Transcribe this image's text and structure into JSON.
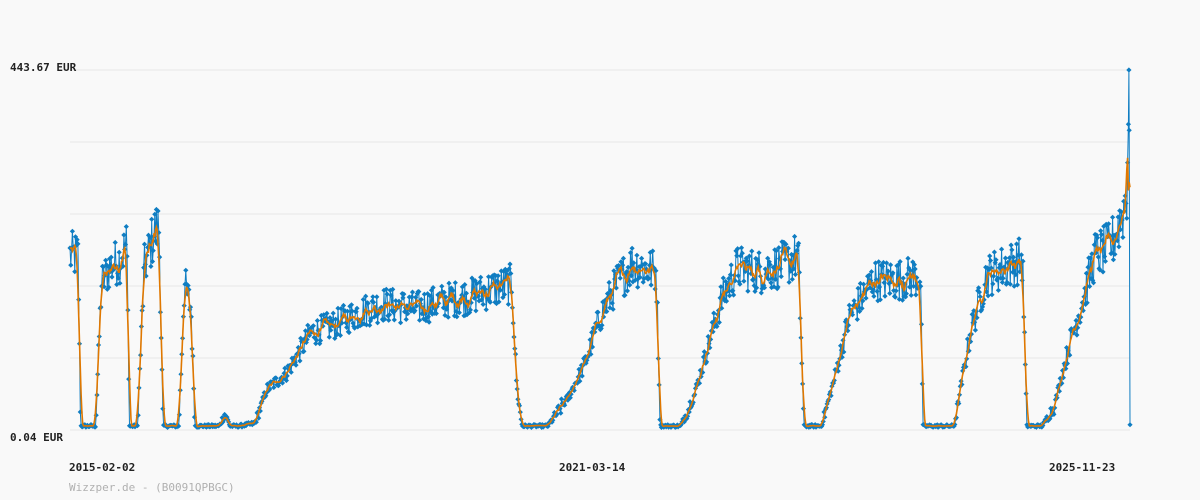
{
  "credit": "Wizzper.de - (B0091QPBGC)",
  "colors": {
    "background": "#f9f9f9",
    "grid": "#e8e8e8",
    "price_markers": "#0f7dc2",
    "average_line": "#e07800"
  },
  "chart_data": {
    "type": "line",
    "title": "",
    "xlabel": "",
    "ylabel": "",
    "y_tick_labels": {
      "top": "443.67 EUR",
      "bottom": "0.04 EUR"
    },
    "x_tick_labels": [
      "2015-02-02",
      "2021-03-14",
      "2025-11-23"
    ],
    "ylim": [
      0.04,
      443.67
    ],
    "xlim": [
      "2015-02-02",
      "2026-01-26"
    ],
    "grid": true,
    "gridline_count": 6,
    "marker_step_days": 3,
    "series": [
      {
        "name": "",
        "role": "price_points",
        "color": "#0f7dc2",
        "marker": "diamond",
        "keypoints": [
          [
            "2015-02-02",
            215
          ],
          [
            "2015-02-20",
            215
          ],
          [
            "2015-03-05",
            215
          ],
          [
            "2015-03-14",
            5
          ],
          [
            "2015-05-10",
            5
          ],
          [
            "2015-06-01",
            180
          ],
          [
            "2015-07-01",
            200
          ],
          [
            "2015-08-10",
            210
          ],
          [
            "2015-09-05",
            230
          ],
          [
            "2015-09-15",
            5
          ],
          [
            "2015-10-15",
            5
          ],
          [
            "2015-11-10",
            200
          ],
          [
            "2015-12-20",
            245
          ],
          [
            "2016-01-05",
            250
          ],
          [
            "2016-01-20",
            5
          ],
          [
            "2016-03-20",
            5
          ],
          [
            "2016-04-10",
            180
          ],
          [
            "2016-05-05",
            150
          ],
          [
            "2016-05-20",
            5
          ],
          [
            "2016-08-20",
            5
          ],
          [
            "2016-09-10",
            20
          ],
          [
            "2016-09-30",
            5
          ],
          [
            "2016-11-01",
            5
          ],
          [
            "2017-01-01",
            8
          ],
          [
            "2017-02-15",
            50
          ],
          [
            "2017-05-01",
            70
          ],
          [
            "2017-08-01",
            120
          ],
          [
            "2017-11-01",
            130
          ],
          [
            "2018-02-01",
            145
          ],
          [
            "2018-05-01",
            155
          ],
          [
            "2018-09-01",
            150
          ],
          [
            "2019-01-01",
            160
          ],
          [
            "2019-04-01",
            165
          ],
          [
            "2019-07-01",
            175
          ],
          [
            "2019-09-01",
            180
          ],
          [
            "2019-09-20",
            50
          ],
          [
            "2019-10-10",
            5
          ],
          [
            "2020-01-15",
            5
          ],
          [
            "2020-04-01",
            40
          ],
          [
            "2020-06-01",
            80
          ],
          [
            "2020-08-01",
            140
          ],
          [
            "2020-10-01",
            180
          ],
          [
            "2020-12-01",
            205
          ],
          [
            "2021-03-01",
            195
          ],
          [
            "2021-03-15",
            5
          ],
          [
            "2021-06-01",
            5
          ],
          [
            "2021-07-20",
            40
          ],
          [
            "2021-09-01",
            90
          ],
          [
            "2021-11-01",
            160
          ],
          [
            "2022-01-01",
            200
          ],
          [
            "2022-04-01",
            195
          ],
          [
            "2022-07-01",
            205
          ],
          [
            "2022-08-20",
            215
          ],
          [
            "2022-09-10",
            5
          ],
          [
            "2022-11-15",
            5
          ],
          [
            "2023-01-01",
            60
          ],
          [
            "2023-03-01",
            140
          ],
          [
            "2023-06-01",
            185
          ],
          [
            "2023-09-01",
            185
          ],
          [
            "2023-11-25",
            190
          ],
          [
            "2023-12-05",
            5
          ],
          [
            "2024-04-01",
            5
          ],
          [
            "2024-06-01",
            120
          ],
          [
            "2024-08-01",
            190
          ],
          [
            "2024-10-01",
            200
          ],
          [
            "2024-12-15",
            210
          ],
          [
            "2025-01-01",
            5
          ],
          [
            "2025-03-01",
            5
          ],
          [
            "2025-04-15",
            30
          ],
          [
            "2025-06-15",
            110
          ],
          [
            "2025-08-01",
            160
          ],
          [
            "2025-09-15",
            215
          ],
          [
            "2025-11-10",
            225
          ],
          [
            "2025-12-01",
            240
          ],
          [
            "2026-01-01",
            270
          ],
          [
            "2026-01-15",
            295
          ],
          [
            "2026-01-22",
            443.67
          ],
          [
            "2026-01-24",
            270
          ],
          [
            "2026-01-25",
            200
          ],
          [
            "2026-01-26",
            5
          ]
        ]
      },
      {
        "name": "",
        "role": "moving_average",
        "color": "#e07800"
      }
    ]
  }
}
